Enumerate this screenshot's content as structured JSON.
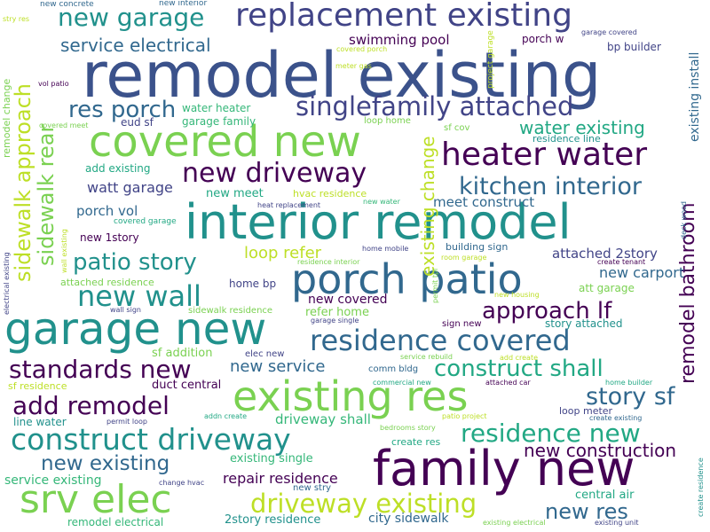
{
  "palette": {
    "dark_purple": "#440154",
    "indigo": "#3b528b",
    "slate_blue": "#414487",
    "teal_blue": "#31688e",
    "teal": "#21918c",
    "green_teal": "#22a884",
    "green": "#35b779",
    "lime": "#7ad151",
    "yellow_green": "#bddf26",
    "yellow": "#fde725"
  },
  "words": [
    "remodel existing",
    "interior remodel",
    "garage new",
    "covered new",
    "porch patio",
    "existing res",
    "family new",
    "replacement existing",
    "srv elec",
    "residence covered",
    "construct driveway",
    "heater water",
    "new driveway",
    "new wall",
    "singlefamily attached",
    "driveway existing",
    "residence new",
    "kitchen interior",
    "new garage",
    "patio story",
    "add remodel",
    "construct shall",
    "standards new",
    "res porch",
    "approach lf",
    "story sf",
    "new existing",
    "service electrical",
    "water existing",
    "new construction",
    "new res",
    "remodel bathroom",
    "sidewalk approach",
    "sidewalk rear",
    "existing change",
    "swimming pool",
    "loop refer",
    "new service",
    "watt garage",
    "repair residence",
    "porch vol",
    "new carport",
    "attached 2story",
    "meet construct",
    "driveway shall",
    "service existing",
    "existing single",
    "2story residence",
    "city sidewalk",
    "central air",
    "new covered",
    "refer home",
    "remodel electrical",
    "line water",
    "duct central",
    "add existing",
    "new 1story",
    "new meet",
    "garage family",
    "water heater",
    "sf addition",
    "story attached",
    "att garage",
    "porch w",
    "bp builder",
    "home bp",
    "eud sf",
    "sf residence",
    "create res",
    "existing install",
    "remodel change",
    "residence line",
    "attached residence",
    "hvac residence",
    "loop meter",
    "sign new",
    "comm bldg",
    "building sign",
    "sidewalk residence",
    "elec new",
    "new stry",
    "loop home",
    "sf cov",
    "heat replacement",
    "new water",
    "covered garage",
    "create tenant",
    "new housing",
    "wall sign",
    "garage single",
    "residence interior",
    "home mobile",
    "permit tpl",
    "room garage",
    "project garage",
    "deck wood",
    "wall existing",
    "electrical existing",
    "garage covered",
    "new concrete",
    "new interior",
    "stry res",
    "covered porch",
    "meter gas",
    "vol patio",
    "covered meet",
    "service rebuild",
    "add create",
    "commercial new",
    "attached car",
    "home builder",
    "addn create",
    "permit loop",
    "change hvac",
    "patio project",
    "bedrooms story",
    "create existing",
    "existing electrical",
    "existing unit",
    "create residence"
  ]
}
